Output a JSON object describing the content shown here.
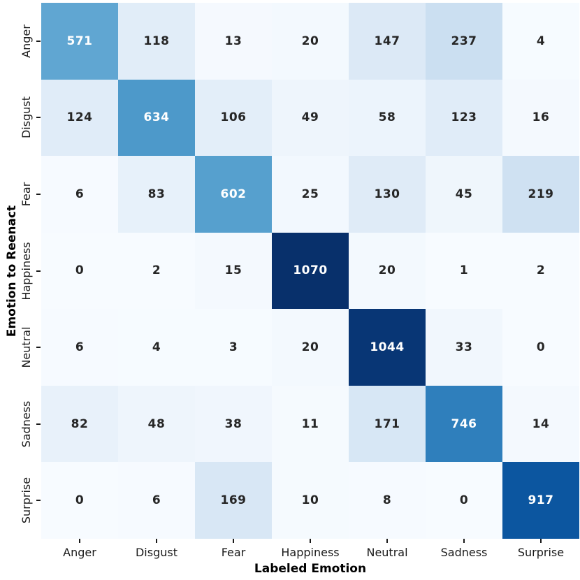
{
  "chart_data": {
    "type": "heatmap",
    "xlabel": "Labeled Emotion",
    "ylabel": "Emotion to Reenact",
    "x_categories": [
      "Anger",
      "Disgust",
      "Fear",
      "Happiness",
      "Neutral",
      "Sadness",
      "Surprise"
    ],
    "y_categories": [
      "Anger",
      "Disgust",
      "Fear",
      "Happiness",
      "Neutral",
      "Sadness",
      "Surprise"
    ],
    "values": [
      [
        571,
        118,
        13,
        20,
        147,
        237,
        4
      ],
      [
        124,
        634,
        106,
        49,
        58,
        123,
        16
      ],
      [
        6,
        83,
        602,
        25,
        130,
        45,
        219
      ],
      [
        0,
        2,
        15,
        1070,
        20,
        1,
        2
      ],
      [
        6,
        4,
        3,
        20,
        1044,
        33,
        0
      ],
      [
        82,
        48,
        38,
        11,
        171,
        746,
        14
      ],
      [
        0,
        6,
        169,
        10,
        8,
        0,
        917
      ]
    ],
    "vmin": 0,
    "vmax": 1070,
    "colormap": "Blues",
    "colormap_stops": [
      "#f7fbff",
      "#deebf7",
      "#c6dbef",
      "#9ecae1",
      "#6baed6",
      "#4292c6",
      "#2171b5",
      "#08519c",
      "#08306b"
    ],
    "annotation_color_dark": "#262626",
    "annotation_color_light": "#ffffff",
    "tick_color": "#1a1a1a",
    "grid": false,
    "legend": "none"
  }
}
